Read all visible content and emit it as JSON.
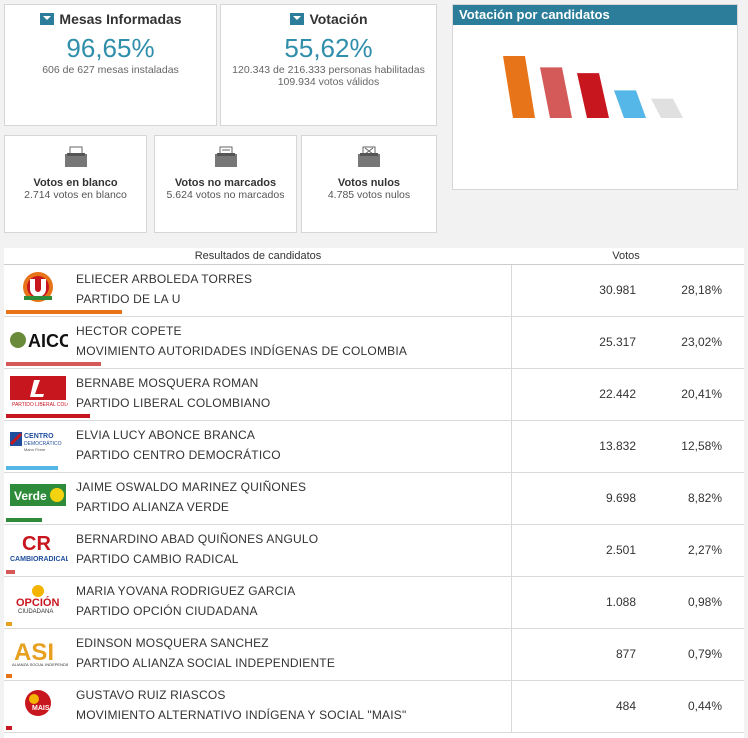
{
  "summary": {
    "mesas": {
      "title": "Mesas Informadas",
      "value": "96,65%",
      "detail": "606 de 627 mesas instaladas"
    },
    "votacion": {
      "title": "Votación",
      "value": "55,62%",
      "detail1": "120.343 de 216.333 personas habilitadas",
      "detail2": "109.934 votos válidos"
    }
  },
  "vote_cards": [
    {
      "title": "Votos en blanco",
      "detail": "2.714 votos en blanco"
    },
    {
      "title": "Votos no marcados",
      "detail": "5.624 votos no marcados"
    },
    {
      "title": "Votos nulos",
      "detail": "4.785 votos nulos"
    }
  ],
  "chart": {
    "title": "Votación por candidatos"
  },
  "chart_data": {
    "type": "bar",
    "title": "Votación por candidatos",
    "categories": [
      "ELIECER ARBOLEDA TORRES",
      "HECTOR COPETE",
      "BERNABE MOSQUERA ROMAN",
      "ELVIA LUCY ABONCE BRANCA",
      "JAIME OSWALDO MARINEZ QUIÑONES"
    ],
    "values": [
      28.18,
      23.02,
      20.41,
      12.58,
      8.82
    ],
    "colors": [
      "#e8741a",
      "#d45a5a",
      "#c8161f",
      "#55b7e8",
      "#e0e0e0"
    ]
  },
  "table": {
    "header_candidates": "Resultados de candidatos",
    "header_votes": "Votos",
    "rows": [
      {
        "name": "ELIECER ARBOLEDA TORRES",
        "party": "PARTIDO DE LA U",
        "votes": "30.981",
        "pct": "28,18%",
        "share": 28.18,
        "color": "#e8741a",
        "logo": "u-logo"
      },
      {
        "name": "HECTOR COPETE",
        "party": "MOVIMIENTO AUTORIDADES INDÍGENAS DE COLOMBIA",
        "votes": "25.317",
        "pct": "23,02%",
        "share": 23.02,
        "color": "#d45a5a",
        "logo": "aico-logo"
      },
      {
        "name": "BERNABE MOSQUERA ROMAN",
        "party": "PARTIDO LIBERAL COLOMBIANO",
        "votes": "22.442",
        "pct": "20,41%",
        "share": 20.41,
        "color": "#c8161f",
        "logo": "liberal-logo"
      },
      {
        "name": "ELVIA LUCY ABONCE BRANCA",
        "party": "PARTIDO CENTRO DEMOCRÁTICO",
        "votes": "13.832",
        "pct": "12,58%",
        "share": 12.58,
        "color": "#55b7e8",
        "logo": "centro-democratico-logo"
      },
      {
        "name": "JAIME OSWALDO MARINEZ QUIÑONES",
        "party": "PARTIDO ALIANZA VERDE",
        "votes": "9.698",
        "pct": "8,82%",
        "share": 8.82,
        "color": "#2e8b3a",
        "logo": "alianza-verde-logo"
      },
      {
        "name": "BERNARDINO ABAD QUIÑONES ANGULO",
        "party": "PARTIDO CAMBIO RADICAL",
        "votes": "2.501",
        "pct": "2,27%",
        "share": 2.27,
        "color": "#d45a5a",
        "logo": "cambio-radical-logo"
      },
      {
        "name": "MARIA YOVANA RODRIGUEZ GARCIA",
        "party": "PARTIDO OPCIÓN CIUDADANA",
        "votes": "1.088",
        "pct": "0,98%",
        "share": 0.98,
        "color": "#e8a020",
        "logo": "opcion-ciudadana-logo"
      },
      {
        "name": "EDINSON MOSQUERA SANCHEZ",
        "party": "PARTIDO ALIANZA SOCIAL INDEPENDIENTE",
        "votes": "877",
        "pct": "0,79%",
        "share": 0.79,
        "color": "#e8741a",
        "logo": "asi-logo"
      },
      {
        "name": "GUSTAVO RUIZ RIASCOS",
        "party": "MOVIMIENTO ALTERNATIVO INDÍGENA Y SOCIAL \"MAIS\"",
        "votes": "484",
        "pct": "0,44%",
        "share": 0.44,
        "color": "#c8161f",
        "logo": "mais-logo"
      }
    ]
  }
}
